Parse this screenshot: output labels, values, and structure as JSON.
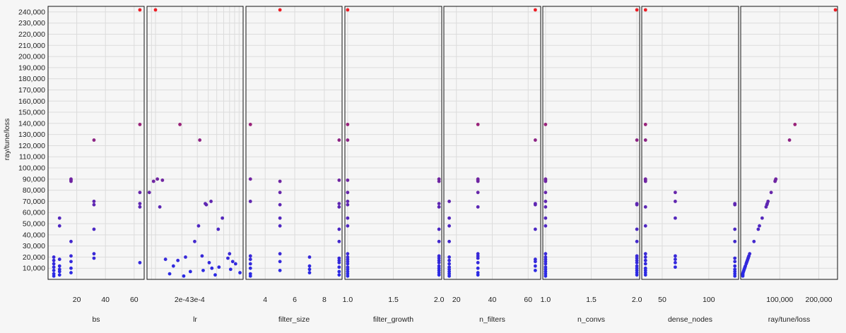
{
  "chart_data": {
    "type": "scatter",
    "ylabel": "ray/tune/loss",
    "ylim": [
      0,
      245000
    ],
    "yticks": [
      10000,
      20000,
      30000,
      40000,
      50000,
      60000,
      70000,
      80000,
      90000,
      100000,
      110000,
      120000,
      130000,
      140000,
      150000,
      160000,
      170000,
      180000,
      190000,
      200000,
      210000,
      220000,
      230000,
      240000
    ],
    "ytick_labels": [
      "10,000",
      "20,000",
      "30,000",
      "40,000",
      "50,000",
      "60,000",
      "70,000",
      "80,000",
      "90,000",
      "100,000",
      "110,000",
      "120,000",
      "130,000",
      "140,000",
      "150,000",
      "160,000",
      "170,000",
      "180,000",
      "190,000",
      "200,000",
      "210,000",
      "220,000",
      "230,000",
      "240,000"
    ],
    "grid": true,
    "color_scale": {
      "low": "#2a2ae6",
      "high": "#ee1c24"
    },
    "loss_values": [
      244000,
      139000,
      125000,
      90000,
      89000,
      88000,
      78000,
      70000,
      68000,
      67000,
      65000,
      55000,
      48000,
      45000,
      34000,
      23000,
      21000,
      20000,
      19000,
      18000,
      17000,
      16000,
      15000,
      14000,
      12000,
      11000,
      10000,
      9000,
      8000,
      7000,
      6000,
      5000,
      4000,
      3000
    ],
    "panels": [
      {
        "xlabel": "bs",
        "scale": "linear",
        "xlim": [
          0,
          67
        ],
        "xticks": [
          20,
          40,
          60
        ],
        "xtick_labels": [
          "20",
          "40",
          "60"
        ],
        "x": [
          64,
          64,
          32,
          16,
          16,
          16,
          64,
          32,
          64,
          32,
          64,
          8,
          8,
          32,
          16,
          32,
          16,
          4,
          32,
          8,
          4,
          16,
          64,
          4,
          8,
          4,
          16,
          8,
          4,
          8,
          16,
          4,
          8,
          4
        ]
      },
      {
        "xlabel": "lr",
        "scale": "log",
        "xlim": [
          8e-05,
          0.001
        ],
        "xticks": [
          0.0002,
          0.0003
        ],
        "xtick_labels": [
          "2e-4",
          "3e-4"
        ],
        "x": [
          0.0001,
          0.00019,
          0.00032,
          0.000105,
          0.00012,
          9.5e-05,
          8.5e-05,
          0.00043,
          0.00037,
          0.00038,
          0.000112,
          0.00058,
          0.00031,
          0.00052,
          0.00028,
          0.0007,
          0.00034,
          0.00022,
          0.00067,
          0.00013,
          0.00018,
          0.00076,
          0.00041,
          0.00082,
          0.00016,
          0.00053,
          0.00044,
          0.00072,
          0.00035,
          0.00025,
          0.00092,
          0.000145,
          0.00048,
          0.00021
        ]
      },
      {
        "xlabel": "filter_size",
        "scale": "linear",
        "xlim": [
          2.7,
          9.2
        ],
        "xticks": [
          4,
          6,
          8
        ],
        "xtick_labels": [
          "4",
          "6",
          "8"
        ],
        "x": [
          5,
          3,
          9,
          3,
          9,
          5,
          5,
          3,
          9,
          5,
          9,
          5,
          5,
          9,
          9,
          5,
          3,
          7,
          9,
          3,
          9,
          5,
          9,
          3,
          7,
          9,
          3,
          7,
          5,
          9,
          7,
          3,
          9,
          3
        ]
      },
      {
        "xlabel": "filter_growth",
        "scale": "linear",
        "xlim": [
          0.97,
          2.03
        ],
        "xticks": [
          1.0,
          1.5,
          2.0
        ],
        "xtick_labels": [
          "1.0",
          "1.5",
          "2.0"
        ],
        "x": [
          1,
          1,
          1,
          2,
          1,
          2,
          1,
          1,
          2,
          1,
          2,
          1,
          1,
          2,
          2,
          1,
          2,
          1,
          2,
          1,
          2,
          1,
          2,
          1,
          2,
          1,
          2,
          1,
          2,
          1,
          2,
          1,
          2,
          1
        ]
      },
      {
        "xlabel": "n_filters",
        "scale": "linear",
        "xlim": [
          13,
          67
        ],
        "xticks": [
          20,
          40,
          60
        ],
        "xtick_labels": [
          "20",
          "40",
          "60"
        ],
        "x": [
          64,
          32,
          64,
          32,
          32,
          32,
          32,
          16,
          64,
          64,
          32,
          16,
          16,
          64,
          16,
          32,
          32,
          16,
          32,
          64,
          16,
          64,
          32,
          16,
          64,
          16,
          32,
          16,
          64,
          16,
          32,
          16,
          32,
          16
        ]
      },
      {
        "xlabel": "n_convs",
        "scale": "linear",
        "xlim": [
          0.97,
          2.03
        ],
        "xticks": [
          1.0,
          1.5,
          2.0
        ],
        "xtick_labels": [
          "1.0",
          "1.5",
          "2.0"
        ],
        "x": [
          2,
          1,
          2,
          1,
          1,
          1,
          1,
          1,
          2,
          2,
          1,
          1,
          1,
          2,
          2,
          1,
          2,
          1,
          2,
          1,
          2,
          1,
          2,
          1,
          2,
          1,
          2,
          1,
          2,
          1,
          2,
          1,
          2,
          1
        ]
      },
      {
        "xlabel": "dense_nodes",
        "scale": "linear",
        "xlim": [
          28,
          132
        ],
        "xticks": [
          50,
          100
        ],
        "xtick_labels": [
          "50",
          "100"
        ],
        "x": [
          32,
          32,
          32,
          32,
          32,
          32,
          64,
          64,
          128,
          128,
          32,
          64,
          32,
          128,
          128,
          32,
          64,
          32,
          128,
          64,
          32,
          128,
          64,
          32,
          128,
          64,
          32,
          128,
          32,
          128,
          32,
          128,
          32,
          128
        ]
      },
      {
        "xlabel": "ray/tune/loss",
        "scale": "linear",
        "xlim": [
          0,
          248000
        ],
        "xticks": [
          100000,
          200000
        ],
        "xtick_labels": [
          "100,000",
          "200,000"
        ],
        "x": [
          244000,
          139000,
          125000,
          90000,
          89000,
          88000,
          78000,
          70000,
          68000,
          67000,
          65000,
          55000,
          48000,
          45000,
          34000,
          23000,
          21000,
          20000,
          19000,
          18000,
          17000,
          16000,
          15000,
          14000,
          12000,
          11000,
          10000,
          9000,
          8000,
          7000,
          6000,
          5000,
          4000,
          3000
        ]
      }
    ]
  }
}
